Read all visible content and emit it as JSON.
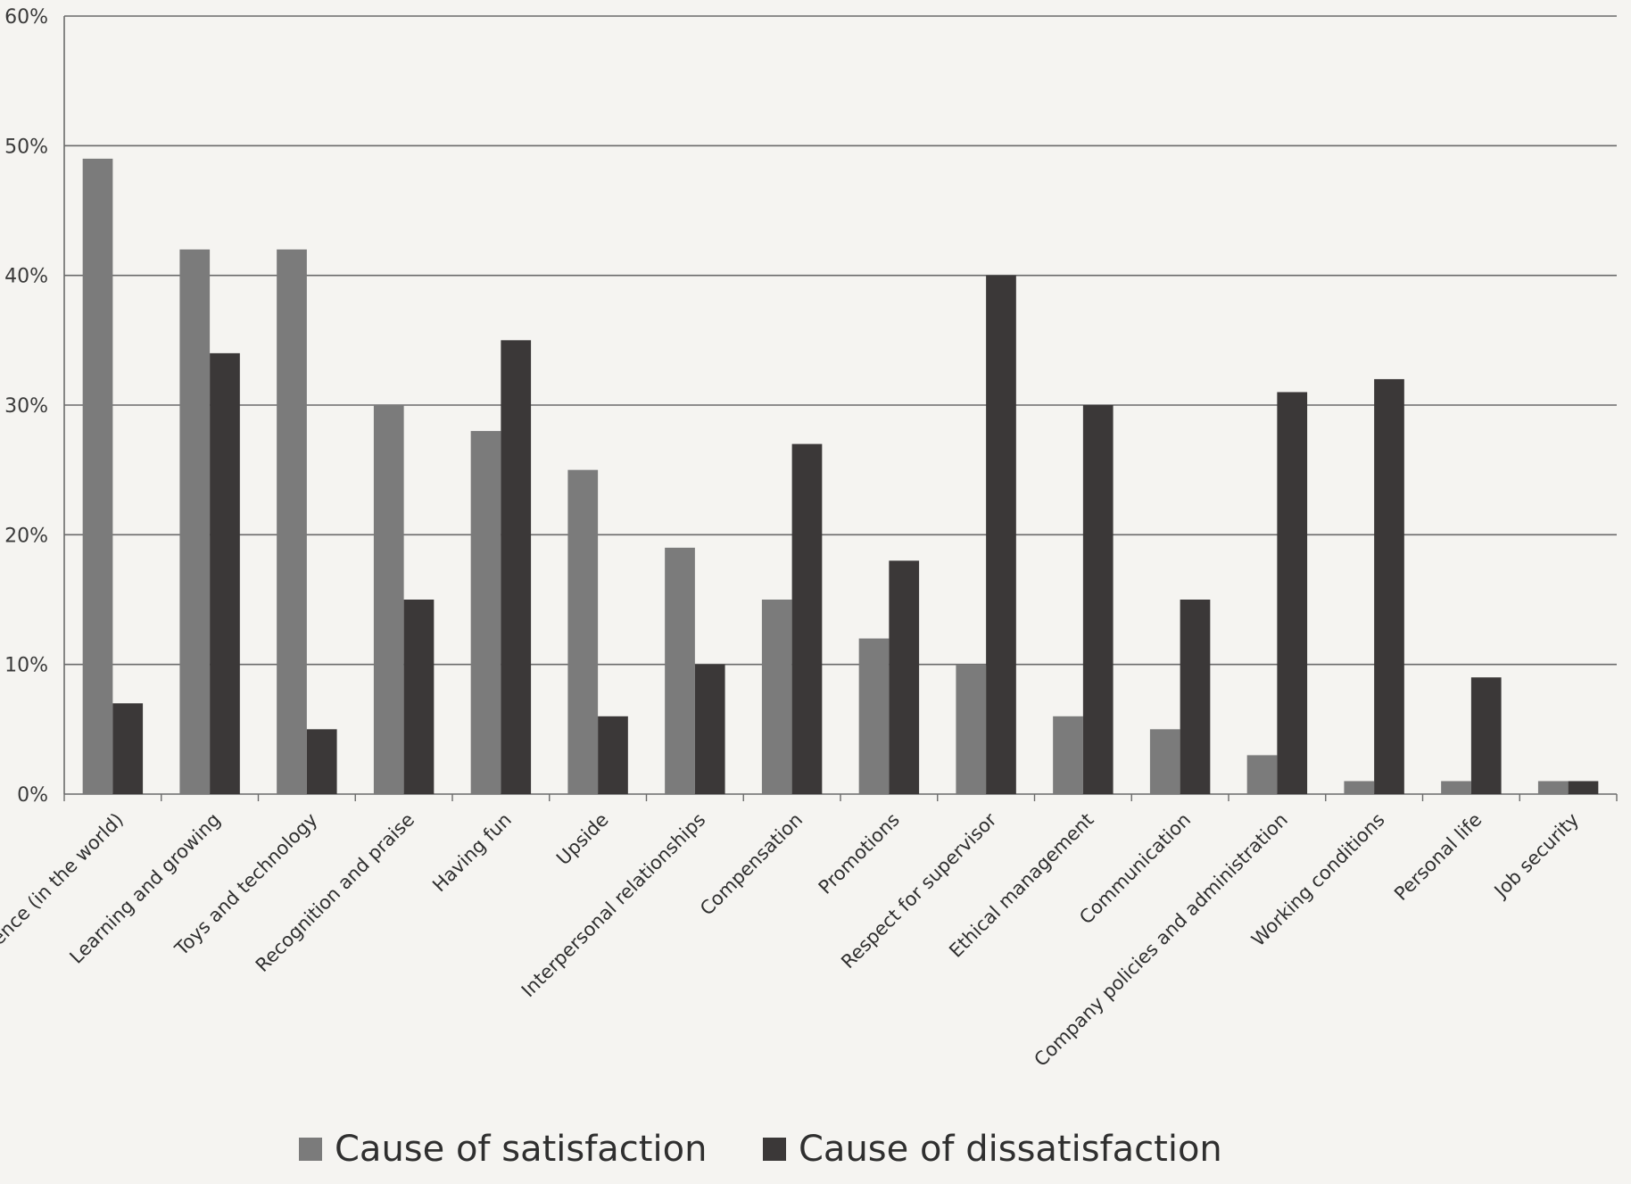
{
  "chart_data": {
    "type": "bar",
    "title": "",
    "xlabel": "",
    "ylabel": "",
    "ylim": [
      0,
      0.6
    ],
    "yticks": [
      {
        "value": 0,
        "label": "0%"
      },
      {
        "value": 0.1,
        "label": "10%"
      },
      {
        "value": 0.2,
        "label": "20%"
      },
      {
        "value": 0.3,
        "label": "30%"
      },
      {
        "value": 0.4,
        "label": "40%"
      },
      {
        "value": 0.5,
        "label": "50%"
      },
      {
        "value": 0.6,
        "label": "60%"
      }
    ],
    "grid": true,
    "legend_position": "bottom",
    "categories": [
      "Making a difference (in the world)",
      "Learning and growing",
      "Toys and technology",
      "Recognition and praise",
      "Having fun",
      "Upside",
      "Interpersonal relationships",
      "Compensation",
      "Promotions",
      "Respect for supervisor",
      "Ethical management",
      "Communication",
      "Company policies and administration",
      "Working conditions",
      "Personal life",
      "Job security"
    ],
    "series": [
      {
        "name": "Cause of satisfaction",
        "color": "#7b7b7b",
        "values": [
          0.49,
          0.42,
          0.42,
          0.3,
          0.28,
          0.25,
          0.19,
          0.15,
          0.12,
          0.1,
          0.06,
          0.05,
          0.03,
          0.01,
          0.01,
          0.01
        ]
      },
      {
        "name": "Cause of dissatisfaction",
        "color": "#3b3838",
        "values": [
          0.07,
          0.34,
          0.05,
          0.15,
          0.35,
          0.06,
          0.1,
          0.27,
          0.18,
          0.4,
          0.3,
          0.15,
          0.31,
          0.32,
          0.09,
          0.01
        ]
      }
    ]
  }
}
